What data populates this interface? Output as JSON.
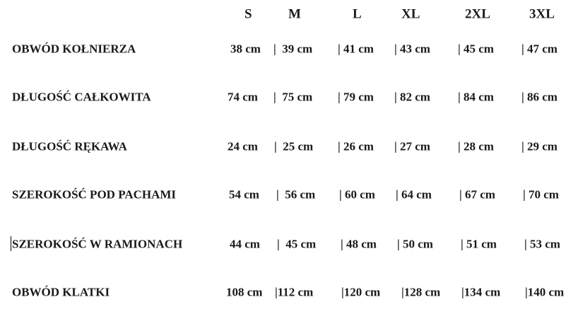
{
  "sizes": [
    "S",
    "M",
    "L",
    "XL",
    "2XL",
    "3XL"
  ],
  "rows": [
    {
      "label": "OBWÓD KOŁNIERZA",
      "cells": [
        "38 cm",
        "|  39 cm",
        "| 41 cm",
        "| 43 cm",
        "| 45 cm",
        "| 47 cm"
      ]
    },
    {
      "label": "DŁUGOŚĆ CAŁKOWITA",
      "cells": [
        "74 cm",
        "|  75 cm",
        "| 79 cm",
        "| 82 cm",
        "| 84 cm",
        "| 86 cm"
      ]
    },
    {
      "label": "DŁUGOŚĆ RĘKAWA",
      "cells": [
        "24 cm",
        "|  25 cm",
        "| 26 cm",
        "| 27 cm",
        "| 28 cm",
        "| 29 cm"
      ]
    },
    {
      "label": "SZEROKOŚĆ POD PACHAMI",
      "cells": [
        "54 cm",
        "|  56 cm",
        "| 60 cm",
        "| 64 cm",
        "| 67 cm",
        "| 70 cm"
      ]
    },
    {
      "label": "SZEROKOŚĆ W RAMIONACH",
      "cells": [
        "44 cm",
        "|  45 cm",
        "| 48 cm",
        "| 50 cm",
        "| 51 cm",
        "| 53 cm"
      ]
    },
    {
      "label": "OBWÓD KLATKI",
      "cells": [
        "108 cm",
        "|112 cm",
        "|120 cm",
        "|128 cm",
        "|134 cm",
        "|140 cm"
      ]
    }
  ]
}
